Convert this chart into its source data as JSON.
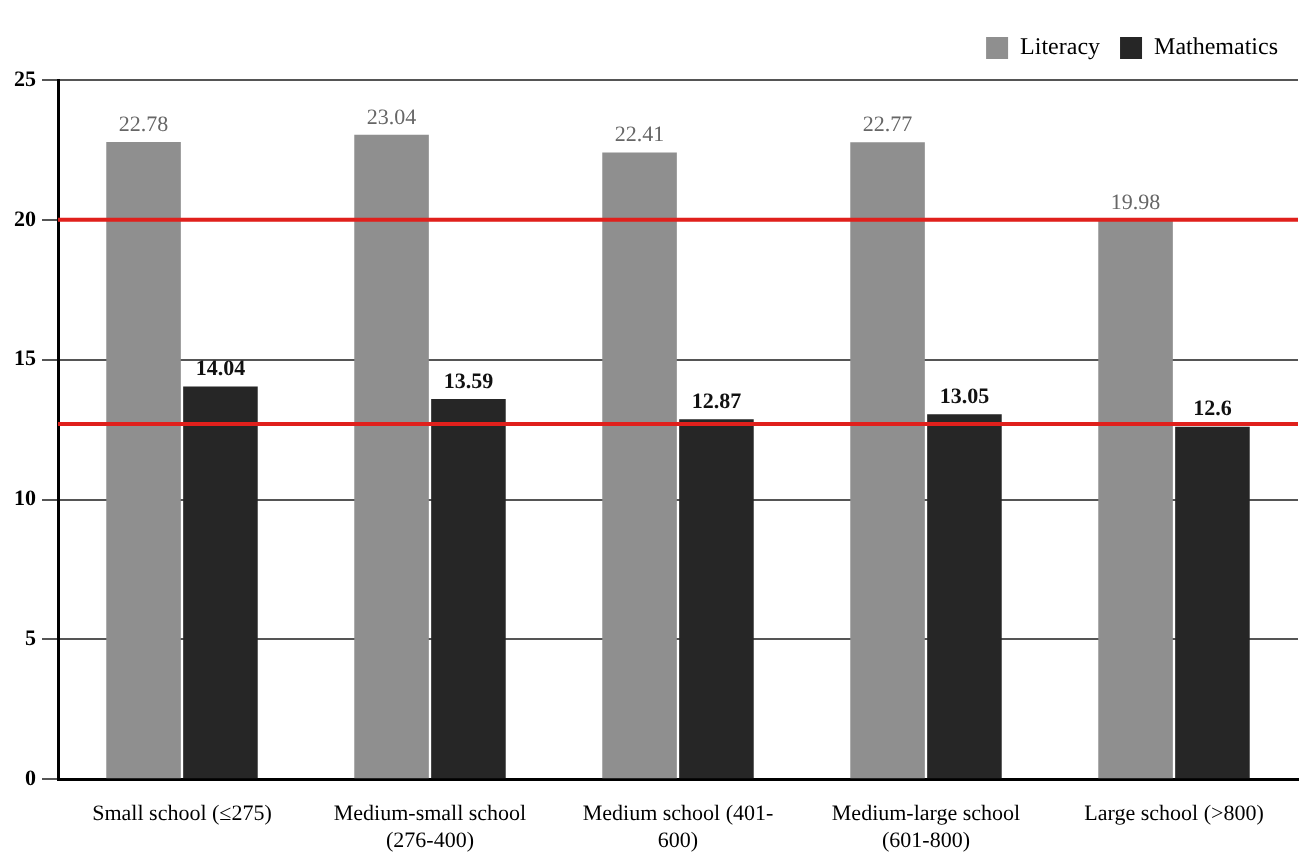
{
  "chart_data": {
    "type": "bar",
    "categories": [
      "Small school (≤275)",
      "Medium-small school (276-400)",
      "Medium school (401-600)",
      "Medium-large school (601-800)",
      "Large school (>800)"
    ],
    "series": [
      {
        "name": "Literacy",
        "color": "#8f8f8f",
        "values": [
          22.78,
          23.04,
          22.41,
          22.77,
          19.98
        ]
      },
      {
        "name": "Mathematics",
        "color": "#262626",
        "values": [
          14.04,
          13.59,
          12.87,
          13.05,
          12.6
        ]
      }
    ],
    "ylim": [
      0,
      25
    ],
    "yticks": [
      0,
      5,
      10,
      15,
      20,
      25
    ],
    "grid": "y",
    "legend": "top right",
    "data_labels": true,
    "ref_lines": [
      {
        "axis": "y",
        "value": 20,
        "color": "#e0201c"
      },
      {
        "axis": "y",
        "value": 12.7,
        "color": "#e0201c"
      }
    ]
  }
}
